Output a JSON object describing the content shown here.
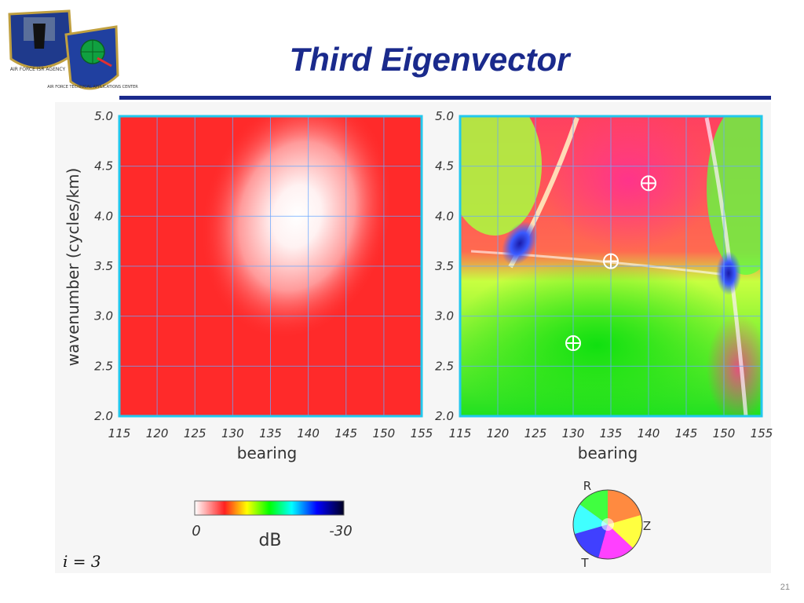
{
  "slide_title": "Third Eigenvector",
  "slide_number": "21",
  "logos": [
    {
      "icon": "air-force-isr-agency-seal",
      "text": "AIR FORCE ISR AGENCY"
    },
    {
      "icon": "air-force-technical-applications-center-seal",
      "text": "AIR FORCE TECHNICAL APPLICATIONS CENTER"
    }
  ],
  "colorbar": {
    "min_label": "0",
    "max_label": "-30",
    "unit": "dB",
    "colors": [
      "#ffffff",
      "#ff2020",
      "#ffff00",
      "#00ff00",
      "#00ffff",
      "#0000ff",
      "#000020"
    ]
  },
  "polarization_wheel": {
    "labels": [
      "R",
      "Z",
      "T"
    ]
  },
  "eq_label": "i = 3",
  "markers_label": "⊕",
  "chart_data": [
    {
      "type": "heatmap",
      "name": "magnitude",
      "xlabel": "bearing",
      "ylabel": "wavenumber (cycles/km)",
      "xlim": [
        115,
        155
      ],
      "ylim": [
        2.0,
        5.0
      ],
      "xticks": [
        "115",
        "120",
        "125",
        "130",
        "135",
        "140",
        "145",
        "150",
        "155"
      ],
      "yticks": [
        "2.0",
        "2.5",
        "3.0",
        "3.5",
        "4.0",
        "4.5",
        "5.0"
      ],
      "grid": true,
      "peak": {
        "bearing": 138.5,
        "wavenumber": 4.0,
        "level_db": 0
      },
      "background_db": -3
    },
    {
      "type": "heatmap",
      "name": "polarization",
      "xlabel": "bearing",
      "xlim": [
        115,
        155
      ],
      "ylim": [
        2.0,
        5.0
      ],
      "xticks": [
        "115",
        "120",
        "125",
        "130",
        "135",
        "140",
        "145",
        "150",
        "155"
      ],
      "yticks": [
        "2.0",
        "2.5",
        "3.0",
        "3.5",
        "4.0",
        "4.5",
        "5.0"
      ],
      "grid": true,
      "markers": [
        {
          "bearing": 140,
          "wavenumber": 4.33
        },
        {
          "bearing": 135,
          "wavenumber": 3.55
        },
        {
          "bearing": 130,
          "wavenumber": 2.73
        }
      ]
    }
  ]
}
